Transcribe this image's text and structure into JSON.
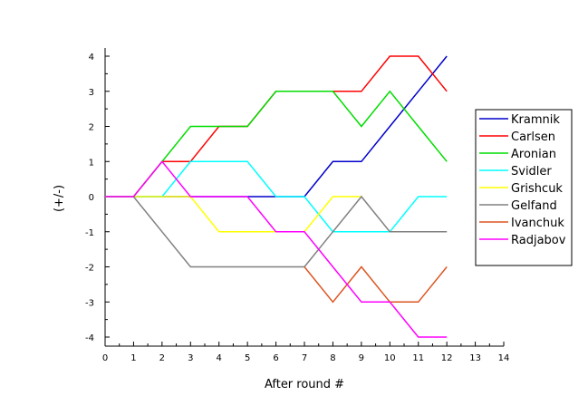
{
  "chart_data": {
    "type": "line",
    "title": "",
    "xlabel": "After round #",
    "ylabel": "(+/-)",
    "xlim": [
      0,
      14
    ],
    "ylim": [
      -4.3,
      4.4
    ],
    "xticks": [
      "0",
      "1",
      "2",
      "3",
      "4",
      "5",
      "6",
      "7",
      "8",
      "9",
      "10",
      "11",
      "12",
      "13",
      "14"
    ],
    "yticks": [
      "4",
      "3",
      "2",
      "1",
      "0",
      "-1",
      "-2",
      "-3",
      "-4"
    ],
    "grid": false,
    "legend_position": "right",
    "series": [
      {
        "name": "Kramnik",
        "color": "#0000cc",
        "x": [
          0,
          1,
          2,
          3,
          4,
          5,
          6,
          7,
          8,
          9,
          10,
          11,
          12
        ],
        "values": [
          0,
          0,
          0,
          0,
          0,
          0,
          0,
          0,
          1,
          1,
          2,
          3,
          4
        ]
      },
      {
        "name": "Carlsen",
        "color": "#ff0000",
        "x": [
          0,
          1,
          2,
          3,
          4,
          5,
          6,
          7,
          8,
          9,
          10,
          11,
          12
        ],
        "values": [
          0,
          0,
          1,
          1,
          2,
          2,
          3,
          3,
          3,
          3,
          4,
          4,
          3
        ]
      },
      {
        "name": "Aronian",
        "color": "#00dd00",
        "x": [
          0,
          1,
          2,
          3,
          4,
          5,
          6,
          7,
          8,
          9,
          10,
          11,
          12
        ],
        "values": [
          0,
          0,
          1,
          2,
          2,
          2,
          3,
          3,
          3,
          2,
          3,
          2,
          1
        ]
      },
      {
        "name": "Svidler",
        "color": "#00ffff",
        "x": [
          0,
          1,
          2,
          3,
          4,
          5,
          6,
          7,
          8,
          9,
          10,
          11,
          12
        ],
        "values": [
          0,
          0,
          0,
          1,
          1,
          1,
          0,
          0,
          -1,
          -1,
          -1,
          0,
          0
        ]
      },
      {
        "name": "Grishcuk",
        "color": "#ffff00",
        "x": [
          0,
          1,
          2,
          3,
          4,
          5,
          6,
          7,
          8,
          9
        ],
        "values": [
          0,
          0,
          0,
          0,
          -1,
          -1,
          -1,
          -1,
          0,
          0
        ]
      },
      {
        "name": "Gelfand",
        "color": "#808080",
        "x": [
          0,
          1,
          2,
          3,
          4,
          5,
          6,
          7,
          8,
          9,
          10,
          11,
          12
        ],
        "values": [
          0,
          0,
          -1,
          -2,
          -2,
          -2,
          -2,
          -2,
          -1,
          0,
          -1,
          -1,
          -1
        ]
      },
      {
        "name": "Ivanchuk",
        "color": "#dd5522",
        "x": [
          7,
          8,
          9,
          10,
          11,
          12
        ],
        "values": [
          -2,
          -3,
          -2,
          -3,
          -3,
          -2
        ]
      },
      {
        "name": "Radjabov",
        "color": "#ff00ff",
        "x": [
          0,
          1,
          2,
          3,
          4,
          5,
          6,
          7,
          8,
          9,
          10,
          11,
          12
        ],
        "values": [
          0,
          0,
          1,
          0,
          0,
          0,
          -1,
          -1,
          -2,
          -3,
          -3,
          -4,
          -4
        ]
      }
    ]
  }
}
